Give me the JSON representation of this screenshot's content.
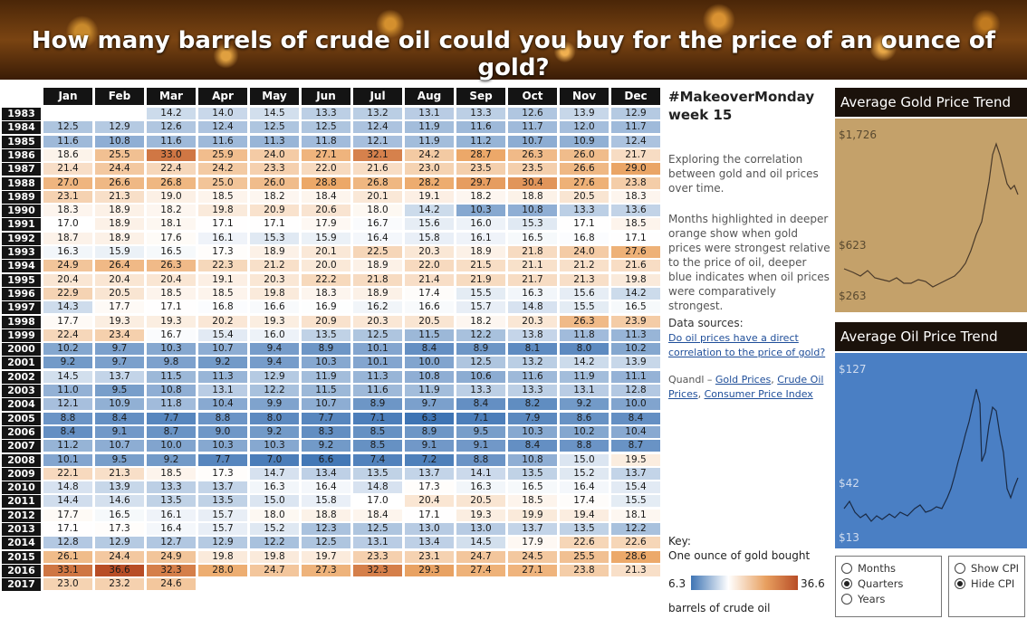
{
  "title": "How many barrels of crude oil could you buy for the price of an ounce of gold?",
  "months": [
    "Jan",
    "Feb",
    "Mar",
    "Apr",
    "May",
    "Jun",
    "Jul",
    "Aug",
    "Sep",
    "Oct",
    "Nov",
    "Dec"
  ],
  "rows": [
    {
      "year": "1983",
      "values": [
        null,
        null,
        14.2,
        14.0,
        14.5,
        13.3,
        13.2,
        13.1,
        13.3,
        12.6,
        13.9,
        12.9
      ]
    },
    {
      "year": "1984",
      "values": [
        12.5,
        12.9,
        12.6,
        12.4,
        12.5,
        12.5,
        12.4,
        11.9,
        11.6,
        11.7,
        12.0,
        11.7
      ]
    },
    {
      "year": "1985",
      "values": [
        11.6,
        10.8,
        11.6,
        11.6,
        11.3,
        11.8,
        12.1,
        11.9,
        11.2,
        10.7,
        10.9,
        12.4
      ]
    },
    {
      "year": "1986",
      "values": [
        18.6,
        25.5,
        33.0,
        25.9,
        24.0,
        27.1,
        32.1,
        24.2,
        28.7,
        26.3,
        26.0,
        21.7
      ]
    },
    {
      "year": "1987",
      "values": [
        21.4,
        24.4,
        22.4,
        24.2,
        23.3,
        22.0,
        21.6,
        23.0,
        23.5,
        23.5,
        26.6,
        29.0
      ]
    },
    {
      "year": "1988",
      "values": [
        27.0,
        26.6,
        26.8,
        25.0,
        26.0,
        28.8,
        26.8,
        28.2,
        29.7,
        30.4,
        27.6,
        23.8
      ]
    },
    {
      "year": "1989",
      "values": [
        23.1,
        21.3,
        19.0,
        18.5,
        18.2,
        18.4,
        20.1,
        19.1,
        18.2,
        18.8,
        20.5,
        18.3
      ]
    },
    {
      "year": "1990",
      "values": [
        18.3,
        18.9,
        18.2,
        19.8,
        20.9,
        20.6,
        18.0,
        14.2,
        10.3,
        10.8,
        13.3,
        13.6
      ]
    },
    {
      "year": "1991",
      "values": [
        17.0,
        18.9,
        18.1,
        17.1,
        17.1,
        17.9,
        16.7,
        15.6,
        16.0,
        15.3,
        17.1,
        18.5
      ]
    },
    {
      "year": "1992",
      "values": [
        18.7,
        18.9,
        17.6,
        16.1,
        15.3,
        15.9,
        16.4,
        15.8,
        16.1,
        16.5,
        16.8,
        17.1
      ]
    },
    {
      "year": "1993",
      "values": [
        16.3,
        15.9,
        16.5,
        17.3,
        18.9,
        20.1,
        22.5,
        20.3,
        18.9,
        21.8,
        24.0,
        27.6
      ]
    },
    {
      "year": "1994",
      "values": [
        24.9,
        26.4,
        26.3,
        22.3,
        21.2,
        20.0,
        18.9,
        22.0,
        21.5,
        21.1,
        21.2,
        21.6
      ]
    },
    {
      "year": "1995",
      "values": [
        20.4,
        20.4,
        20.4,
        19.1,
        20.3,
        22.2,
        21.8,
        21.4,
        21.9,
        21.7,
        21.3,
        19.8
      ]
    },
    {
      "year": "1996",
      "values": [
        22.9,
        20.5,
        18.5,
        18.5,
        19.8,
        18.3,
        18.9,
        17.4,
        15.5,
        16.3,
        15.6,
        14.2
      ]
    },
    {
      "year": "1997",
      "values": [
        14.3,
        17.7,
        17.1,
        16.8,
        16.6,
        16.9,
        16.2,
        16.6,
        15.7,
        14.8,
        15.5,
        16.5
      ]
    },
    {
      "year": "1998",
      "values": [
        17.7,
        19.3,
        19.3,
        20.2,
        19.3,
        20.9,
        20.3,
        20.5,
        18.2,
        20.3,
        26.3,
        23.9
      ]
    },
    {
      "year": "1999",
      "values": [
        22.4,
        23.4,
        16.7,
        15.4,
        16.0,
        13.5,
        12.5,
        11.5,
        12.2,
        13.8,
        11.8,
        11.3
      ]
    },
    {
      "year": "2000",
      "values": [
        10.2,
        9.7,
        10.3,
        10.7,
        9.4,
        8.9,
        10.1,
        8.4,
        8.9,
        8.1,
        8.0,
        10.2
      ]
    },
    {
      "year": "2001",
      "values": [
        9.2,
        9.7,
        9.8,
        9.2,
        9.4,
        10.3,
        10.1,
        10.0,
        12.5,
        13.2,
        14.2,
        13.9
      ]
    },
    {
      "year": "2002",
      "values": [
        14.5,
        13.7,
        11.5,
        11.3,
        12.9,
        11.9,
        11.3,
        10.8,
        10.6,
        11.6,
        11.9,
        11.1
      ]
    },
    {
      "year": "2003",
      "values": [
        11.0,
        9.5,
        10.8,
        13.1,
        12.2,
        11.5,
        11.6,
        11.9,
        13.3,
        13.3,
        13.1,
        12.8
      ]
    },
    {
      "year": "2004",
      "values": [
        12.1,
        10.9,
        11.8,
        10.4,
        9.9,
        10.7,
        8.9,
        9.7,
        8.4,
        8.2,
        9.2,
        10.0
      ]
    },
    {
      "year": "2005",
      "values": [
        8.8,
        8.4,
        7.7,
        8.8,
        8.0,
        7.7,
        7.1,
        6.3,
        7.1,
        7.9,
        8.6,
        8.4
      ]
    },
    {
      "year": "2006",
      "values": [
        8.4,
        9.1,
        8.7,
        9.0,
        9.2,
        8.3,
        8.5,
        8.9,
        9.5,
        10.3,
        10.2,
        10.4
      ]
    },
    {
      "year": "2007",
      "values": [
        11.2,
        10.7,
        10.0,
        10.3,
        10.3,
        9.2,
        8.5,
        9.1,
        9.1,
        8.4,
        8.8,
        8.7
      ]
    },
    {
      "year": "2008",
      "values": [
        10.1,
        9.5,
        9.2,
        7.7,
        7.0,
        6.6,
        7.4,
        7.2,
        8.8,
        10.8,
        15.0,
        19.5
      ]
    },
    {
      "year": "2009",
      "values": [
        22.1,
        21.3,
        18.5,
        17.3,
        14.7,
        13.4,
        13.5,
        13.7,
        14.1,
        13.5,
        15.2,
        13.7
      ]
    },
    {
      "year": "2010",
      "values": [
        14.8,
        13.9,
        13.3,
        13.7,
        16.3,
        16.4,
        14.8,
        17.3,
        16.3,
        16.5,
        16.4,
        15.4
      ]
    },
    {
      "year": "2011",
      "values": [
        14.4,
        14.6,
        13.5,
        13.5,
        15.0,
        15.8,
        17.0,
        20.4,
        20.5,
        18.5,
        17.4,
        15.5
      ]
    },
    {
      "year": "2012",
      "values": [
        17.7,
        16.5,
        16.1,
        15.7,
        18.0,
        18.8,
        18.4,
        17.1,
        19.3,
        19.9,
        19.4,
        18.1
      ]
    },
    {
      "year": "2013",
      "values": [
        17.1,
        17.3,
        16.4,
        15.7,
        15.2,
        12.3,
        12.5,
        13.0,
        13.0,
        13.7,
        13.5,
        12.2
      ]
    },
    {
      "year": "2014",
      "values": [
        12.8,
        12.9,
        12.7,
        12.9,
        12.2,
        12.5,
        13.1,
        13.4,
        14.5,
        17.9,
        22.6,
        22.6
      ]
    },
    {
      "year": "2015",
      "values": [
        26.1,
        24.4,
        24.9,
        19.8,
        19.8,
        19.7,
        23.3,
        23.1,
        24.7,
        24.5,
        25.5,
        28.6
      ]
    },
    {
      "year": "2016",
      "values": [
        33.1,
        36.6,
        32.3,
        28.0,
        24.7,
        27.3,
        32.3,
        29.3,
        27.4,
        27.1,
        23.8,
        21.3
      ]
    },
    {
      "year": "2017",
      "values": [
        23.0,
        23.2,
        24.6,
        null,
        null,
        null,
        null,
        null,
        null,
        null,
        null,
        null
      ]
    }
  ],
  "color_scale": {
    "min": 6.3,
    "mid": 17.0,
    "max": 36.6,
    "low": "#3e74b4",
    "midcolor": "#ffffff",
    "high": "#b84d26"
  },
  "header_text": {
    "hashtag": "#MakeoverMonday",
    "week": "week 15"
  },
  "description": {
    "p1": "Exploring the correlation between gold and oil prices over time.",
    "p2": "Months highlighted in deeper orange show when gold prices were strongest relative to the price of oil, deeper blue indicates when oil prices were comparatively strongest."
  },
  "sources": {
    "label": "Data sources:",
    "link1": "Do oil prices have a direct correlation to the price of gold?",
    "quandl_prefix": "Quandl – ",
    "gold": "Gold Prices",
    "comma": ", ",
    "crude": "Crude Oil Prices",
    "cpi": "Consumer Price Index"
  },
  "key": {
    "title": "Key:",
    "subtitle": "One ounce of gold bought",
    "min_label": "6.3",
    "max_label": "36.6",
    "unit": "barrels of crude oil"
  },
  "gold_panel": {
    "title": "Average Gold Price Trend",
    "top_label": "$1,726",
    "mid_label": "$623",
    "bottom_label": "$263",
    "bg": "#c4a16a",
    "line": "#4a3a2a"
  },
  "oil_panel": {
    "title": "Average Oil Price Trend",
    "top_label": "$127",
    "mid_label": "$42",
    "bottom_label": "$13",
    "bg": "#4a7fc4",
    "line": "#1a2a44"
  },
  "period_options": [
    {
      "label": "Months",
      "checked": false
    },
    {
      "label": "Quarters",
      "checked": true
    },
    {
      "label": "Years",
      "checked": false
    }
  ],
  "cpi_options": [
    {
      "label": "Show CPI",
      "checked": false
    },
    {
      "label": "Hide CPI",
      "checked": true
    }
  ]
}
